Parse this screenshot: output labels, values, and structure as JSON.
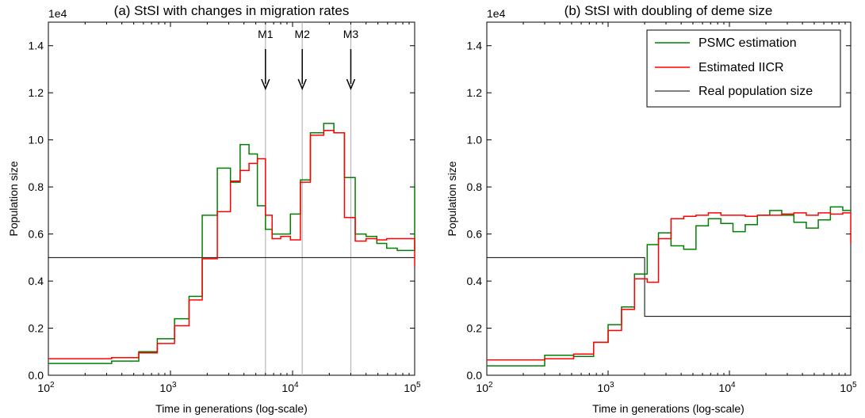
{
  "colors": {
    "psmc": "#008000",
    "iicr": "#ff0000",
    "real": "#000000",
    "vline": "#b8b8b8"
  },
  "chart_data": [
    {
      "type": "line",
      "title": "(a) StSI with changes in migration rates",
      "xlabel": "Time in generations (log-scale)",
      "ylabel": "Population size",
      "x_scale": "log",
      "xlim": [
        100,
        100000
      ],
      "ylim": [
        0,
        1.5
      ],
      "y_multiplier": "1e4",
      "xticks": [
        {
          "v": 100,
          "base": "10",
          "exp": "2"
        },
        {
          "v": 1000,
          "base": "10",
          "exp": "3"
        },
        {
          "v": 10000,
          "base": "10",
          "exp": "4"
        },
        {
          "v": 100000,
          "base": "10",
          "exp": "5"
        }
      ],
      "yticks": [
        {
          "v": 0,
          "label": "0.0"
        },
        {
          "v": 0.2,
          "label": "0.2"
        },
        {
          "v": 0.4,
          "label": "0.4"
        },
        {
          "v": 0.6,
          "label": "0.6"
        },
        {
          "v": 0.8,
          "label": "0.8"
        },
        {
          "v": 1.0,
          "label": "1.0"
        },
        {
          "v": 1.2,
          "label": "1.2"
        },
        {
          "v": 1.4,
          "label": "1.4"
        }
      ],
      "grid": false,
      "legend": false,
      "vlines": [
        {
          "x": 6000,
          "label": "M1"
        },
        {
          "x": 12000,
          "label": "M2"
        },
        {
          "x": 30000,
          "label": "M3"
        }
      ],
      "series": [
        {
          "name": "PSMC estimation",
          "color_key": "psmc",
          "step": true,
          "x": [
            100,
            330,
            550,
            780,
            1080,
            1420,
            1820,
            2420,
            3100,
            3720,
            4400,
            5150,
            6000,
            6800,
            8000,
            9600,
            11600,
            14000,
            18000,
            21800,
            26600,
            32600,
            40000,
            49000,
            59000,
            72000,
            87000,
            100000
          ],
          "y": [
            0.05,
            0.06,
            0.1,
            0.155,
            0.24,
            0.335,
            0.68,
            0.88,
            0.82,
            0.98,
            0.94,
            0.72,
            0.62,
            0.6,
            0.6,
            0.685,
            0.83,
            1.03,
            1.07,
            1.03,
            0.84,
            0.6,
            0.59,
            0.56,
            0.54,
            0.53,
            0.53,
            0.81
          ]
        },
        {
          "name": "Estimated IICR",
          "color_key": "iicr",
          "step": true,
          "x": [
            100,
            330,
            550,
            780,
            1080,
            1420,
            1820,
            2420,
            3100,
            3720,
            4400,
            5150,
            6000,
            6800,
            8000,
            9600,
            11600,
            14000,
            18000,
            21800,
            26600,
            32600,
            40000,
            49000,
            59000,
            72000,
            87000,
            100000
          ],
          "y": [
            0.07,
            0.075,
            0.095,
            0.135,
            0.21,
            0.32,
            0.495,
            0.695,
            0.825,
            0.87,
            0.9,
            0.92,
            0.68,
            0.58,
            0.59,
            0.575,
            0.82,
            1.02,
            1.04,
            1.03,
            0.67,
            0.57,
            0.58,
            0.575,
            0.58,
            0.58,
            0.58,
            0.46
          ]
        },
        {
          "name": "Real population size",
          "color_key": "real",
          "step": true,
          "x": [
            100,
            100000
          ],
          "y": [
            0.5,
            0.5
          ]
        }
      ]
    },
    {
      "type": "line",
      "title": "(b) StSI with doubling of deme size",
      "xlabel": "Time in generations (log-scale)",
      "ylabel": "Population size",
      "x_scale": "log",
      "xlim": [
        100,
        100000
      ],
      "ylim": [
        0,
        1.5
      ],
      "y_multiplier": "1e4",
      "xticks": [
        {
          "v": 100,
          "base": "10",
          "exp": "2"
        },
        {
          "v": 1000,
          "base": "10",
          "exp": "3"
        },
        {
          "v": 10000,
          "base": "10",
          "exp": "4"
        },
        {
          "v": 100000,
          "base": "10",
          "exp": "5"
        }
      ],
      "yticks": [
        {
          "v": 0,
          "label": "0.0"
        },
        {
          "v": 0.2,
          "label": "0.2"
        },
        {
          "v": 0.4,
          "label": "0.4"
        },
        {
          "v": 0.6,
          "label": "0.6"
        },
        {
          "v": 0.8,
          "label": "0.8"
        },
        {
          "v": 1.0,
          "label": "1.0"
        },
        {
          "v": 1.2,
          "label": "1.2"
        },
        {
          "v": 1.4,
          "label": "1.4"
        }
      ],
      "grid": false,
      "legend": "top-right",
      "series": [
        {
          "name": "PSMC estimation",
          "color_key": "psmc",
          "step": true,
          "x": [
            100,
            300,
            520,
            760,
            1000,
            1290,
            1650,
            2100,
            2600,
            3300,
            4200,
            5300,
            6700,
            8500,
            10700,
            13500,
            17000,
            21500,
            27000,
            34000,
            43000,
            54000,
            68000,
            86000,
            100000
          ],
          "y": [
            0.04,
            0.085,
            0.08,
            0.14,
            0.215,
            0.29,
            0.43,
            0.555,
            0.605,
            0.55,
            0.535,
            0.635,
            0.665,
            0.645,
            0.61,
            0.64,
            0.68,
            0.7,
            0.68,
            0.65,
            0.625,
            0.66,
            0.715,
            0.7,
            0.705
          ]
        },
        {
          "name": "Estimated IICR",
          "color_key": "iicr",
          "step": true,
          "x": [
            100,
            300,
            520,
            760,
            1000,
            1290,
            1650,
            2100,
            2600,
            3300,
            4200,
            5300,
            6700,
            8500,
            10700,
            13500,
            17000,
            21500,
            27000,
            34000,
            43000,
            54000,
            68000,
            86000,
            100000
          ],
          "y": [
            0.065,
            0.07,
            0.09,
            0.14,
            0.19,
            0.28,
            0.41,
            0.395,
            0.58,
            0.665,
            0.675,
            0.68,
            0.69,
            0.68,
            0.68,
            0.675,
            0.68,
            0.68,
            0.685,
            0.69,
            0.68,
            0.69,
            0.685,
            0.69,
            0.56
          ]
        },
        {
          "name": "Real population size",
          "color_key": "real",
          "step": true,
          "x": [
            100,
            2000,
            100000
          ],
          "y": [
            0.5,
            0.25,
            0.25
          ]
        }
      ]
    }
  ]
}
